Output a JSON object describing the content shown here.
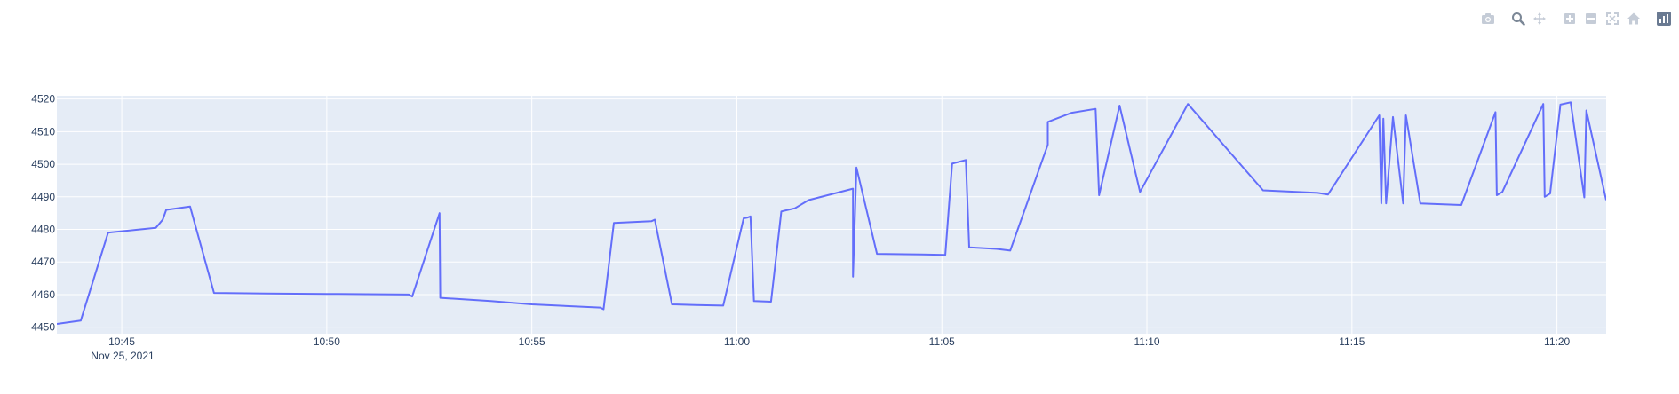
{
  "modebar": {
    "buttons": [
      {
        "name": "camera-icon",
        "group": 1
      },
      {
        "name": "zoom-icon",
        "group": 2,
        "active": true
      },
      {
        "name": "pan-icon",
        "group": 2
      },
      {
        "name": "zoom-in-icon",
        "group": 3
      },
      {
        "name": "zoom-out-icon",
        "group": 3
      },
      {
        "name": "autoscale-icon",
        "group": 3
      },
      {
        "name": "reset-axes-icon",
        "group": 3
      },
      {
        "name": "plotly-logo-icon",
        "group": 4
      }
    ],
    "icon_color": "#c5ccd7",
    "active_color": "#7b8796",
    "logo_color": "#6a7a92"
  },
  "colors": {
    "plot_bg": "#e5ecf6",
    "grid": "#ffffff",
    "line": "#636efa",
    "tick_text": "#2a3f5f"
  },
  "chart_data": {
    "type": "line",
    "grid": true,
    "legend": "none",
    "x_axis": {
      "type": "time",
      "range": [
        "10:43:25",
        "11:21:12"
      ],
      "tick_labels": [
        "10:45",
        "10:50",
        "10:55",
        "11:00",
        "11:05",
        "11:10",
        "11:15",
        "11:20"
      ],
      "date_label": "Nov 25, 2021"
    },
    "y_axis": {
      "range": [
        4448,
        4521
      ],
      "tick_values": [
        4450,
        4460,
        4470,
        4480,
        4490,
        4500,
        4510,
        4520
      ],
      "tick_labels": [
        "4450",
        "4460",
        "4470",
        "4480",
        "4490",
        "4500",
        "4510",
        "4520"
      ]
    },
    "series": [
      {
        "x": [
          "10:43:25",
          "10:44:00",
          "10:44:40",
          "10:45:50",
          "10:46:00",
          "10:46:05",
          "10:46:40",
          "10:47:15",
          "10:48:30",
          "10:50:00",
          "10:52:00",
          "10:52:05",
          "10:52:45",
          "10:52:46",
          "10:54:00",
          "10:55:00",
          "10:56:40",
          "10:56:45",
          "10:57:00",
          "10:57:55",
          "10:58:00",
          "10:58:25",
          "10:59:00",
          "10:59:40",
          "11:00:10",
          "11:00:15",
          "11:00:20",
          "11:00:25",
          "11:00:50",
          "11:01:05",
          "11:01:25",
          "11:01:45",
          "11:02:50",
          "11:02:50",
          "11:02:55",
          "11:03:25",
          "11:04:30",
          "11:05:05",
          "11:05:15",
          "11:05:35",
          "11:05:40",
          "11:06:20",
          "11:06:40",
          "11:07:35",
          "11:07:35",
          "11:08:10",
          "11:08:45",
          "11:08:50",
          "11:09:20",
          "11:09:50",
          "11:11:00",
          "11:12:50",
          "11:14:10",
          "11:14:25",
          "11:15:40",
          "11:15:43",
          "11:15:46",
          "11:15:50",
          "11:16:00",
          "11:16:15",
          "11:16:19",
          "11:16:40",
          "11:17:40",
          "11:18:30",
          "11:18:32",
          "11:18:40",
          "11:19:40",
          "11:19:42",
          "11:19:50",
          "11:20:05",
          "11:20:20",
          "11:20:40",
          "11:20:43",
          "11:21:12"
        ],
        "y": [
          4451,
          4452,
          4479,
          4480.5,
          4483,
          4486,
          4487,
          4460.5,
          4460.3,
          4460.2,
          4460,
          4459.4,
          4485,
          4459,
          4458,
          4457,
          4456,
          4455.5,
          4482,
          4482.5,
          4483,
          4457,
          4456.8,
          4456.6,
          4483.4,
          4483.6,
          4484,
          4458,
          4457.8,
          4485.5,
          4486.5,
          4489,
          4492.5,
          4465.5,
          4499,
          4472.5,
          4472.3,
          4472.2,
          4500.2,
          4501.3,
          4474.5,
          4474,
          4473.5,
          4506,
          4513,
          4515.8,
          4517,
          4490.5,
          4518,
          4491.5,
          4518.5,
          4492,
          4491.2,
          4490.7,
          4515,
          4488,
          4514,
          4488,
          4514.5,
          4488,
          4515,
          4488,
          4487.5,
          4516,
          4490.5,
          4491.5,
          4518.5,
          4490,
          4491,
          4518.3,
          4519,
          4489.8,
          4516.5,
          4489
        ]
      }
    ]
  }
}
